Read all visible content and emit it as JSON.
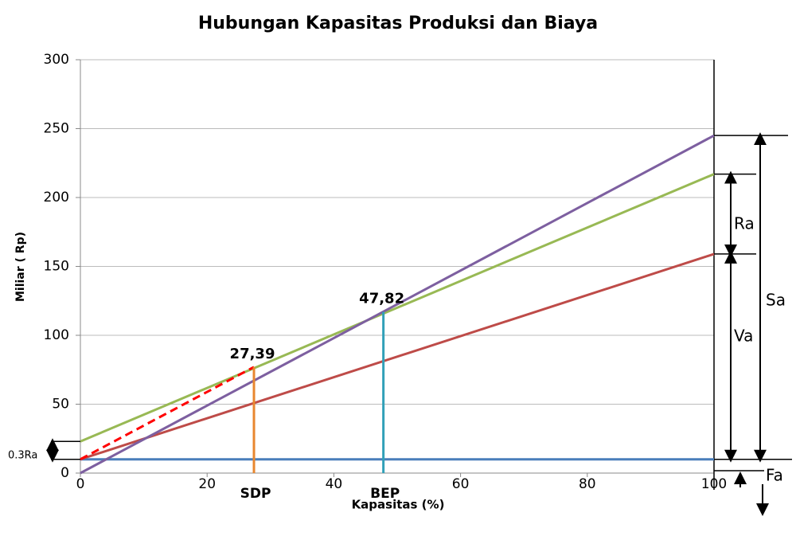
{
  "chart_data": {
    "type": "line",
    "title": "Hubungan Kapasitas Produksi dan Biaya",
    "xlabel": "Kapasitas (%)",
    "ylabel": "Miliar ( Rp)",
    "xlim": [
      0,
      100
    ],
    "xticks": [
      0,
      20,
      40,
      60,
      80,
      100
    ],
    "ylim": [
      0,
      300
    ],
    "yticks": [
      0,
      50,
      100,
      150,
      200,
      250,
      300
    ],
    "grid": true,
    "series": [
      {
        "color": "#4a7ebb",
        "x": [
          0,
          100
        ],
        "values": [
          10,
          10
        ]
      },
      {
        "color": "#be4b48",
        "x": [
          0,
          100
        ],
        "values": [
          10,
          159
        ]
      },
      {
        "color": "#98b954",
        "x": [
          0,
          100
        ],
        "values": [
          23,
          217
        ]
      },
      {
        "color": "#7d5fa0",
        "x": [
          0,
          100
        ],
        "values": [
          0,
          245
        ]
      },
      {
        "color": "#ff0000",
        "dashed": true,
        "x": [
          0,
          27.39
        ],
        "values": [
          10,
          77
        ]
      }
    ],
    "markers": [
      {
        "name": "SDP",
        "label": "27,39",
        "x": 27.39,
        "value": 77,
        "color": "#e8872f"
      },
      {
        "name": "BEP",
        "label": "47,82",
        "x": 47.82,
        "value": 117,
        "color": "#31a0b8"
      }
    ],
    "dimensions": [
      "Sa",
      "Ra",
      "Va",
      "Fa",
      "0.3Ra"
    ]
  }
}
